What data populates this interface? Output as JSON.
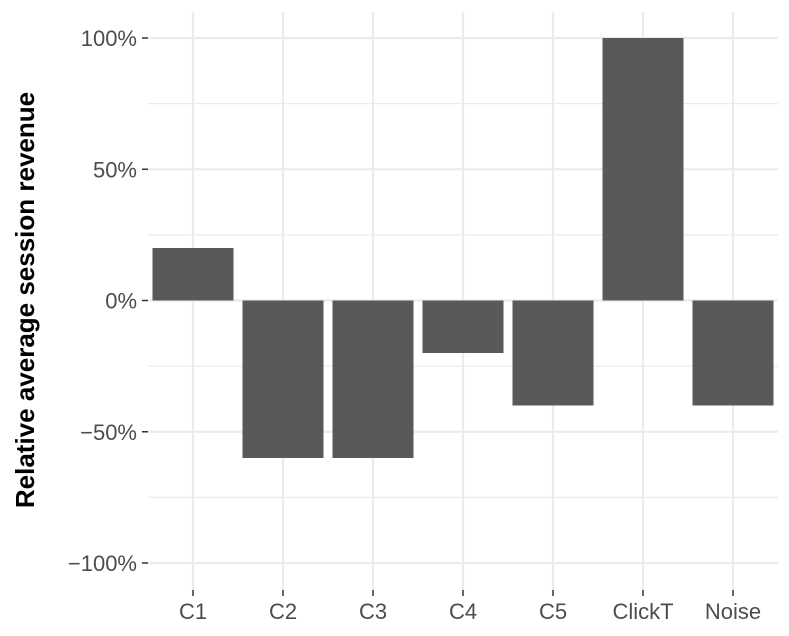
{
  "chart_data": {
    "type": "bar",
    "title": "",
    "xlabel": "",
    "ylabel": "Relative average session revenue",
    "categories": [
      "C1",
      "C2",
      "C3",
      "C4",
      "C5",
      "ClickT",
      "Noise"
    ],
    "values": [
      20,
      -60,
      -60,
      -20,
      -40,
      100,
      -40
    ],
    "value_unit": "percent",
    "ylim": [
      -100,
      100
    ],
    "y_ticks": [
      -100,
      -50,
      0,
      50,
      100
    ],
    "y_tick_labels": [
      "−100%",
      "−50%",
      "0%",
      "50%",
      "100%"
    ],
    "grid": true,
    "legend": "none",
    "colors": {
      "bar": "#595959",
      "grid": "#ebebeb",
      "tick_text": "#4d4d4d",
      "axis_title": "#000000",
      "background": "#ffffff"
    }
  }
}
